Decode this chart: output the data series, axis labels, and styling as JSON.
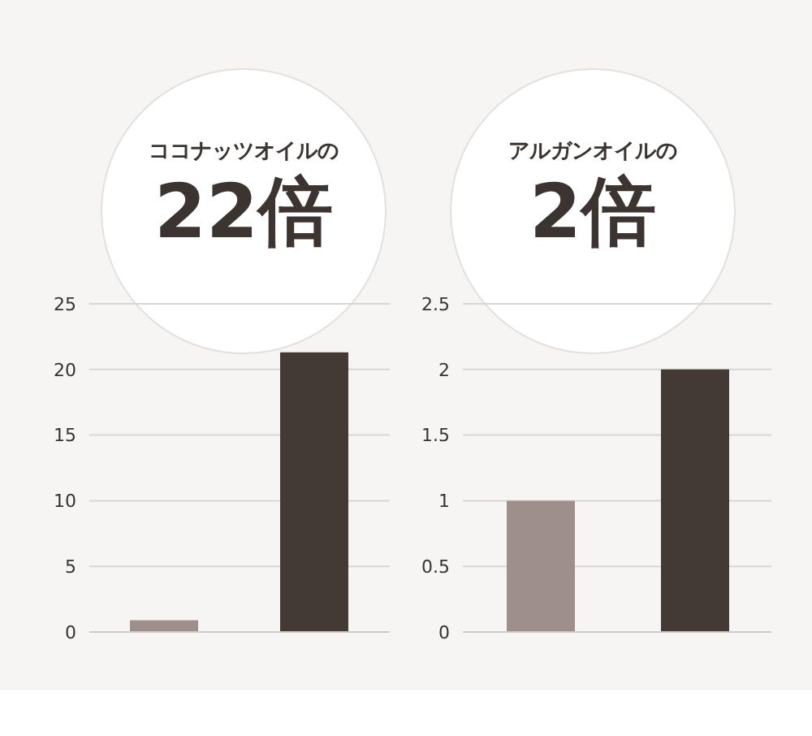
{
  "chart_data": [
    {
      "type": "bar",
      "title": "ココナッツオイルの",
      "subtitle": "22倍",
      "categories": [
        null,
        null
      ],
      "values": [
        0.9,
        21.3
      ],
      "colors": [
        "#9e8f8c",
        "#433a36"
      ],
      "ylim": [
        0,
        25
      ],
      "yticks": [
        0,
        5,
        10,
        15,
        20,
        25
      ],
      "grid": "y",
      "legend": false
    },
    {
      "type": "bar",
      "title": "アルガンオイルの",
      "subtitle": "2倍",
      "categories": [
        null,
        null
      ],
      "values": [
        1,
        2
      ],
      "colors": [
        "#9e8f8c",
        "#433a36"
      ],
      "ylim": [
        0,
        2.5
      ],
      "yticks": [
        0,
        0.5,
        1,
        1.5,
        2,
        2.5
      ],
      "grid": "y",
      "legend": false
    }
  ]
}
